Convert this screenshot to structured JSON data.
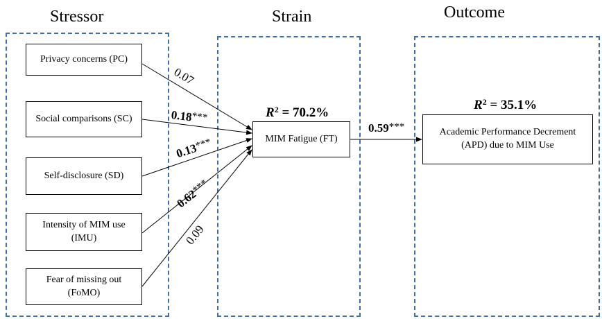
{
  "sections": {
    "stressor": "Stressor",
    "strain": "Strain",
    "outcome": "Outcome"
  },
  "stressors": [
    {
      "id": "pc",
      "label": "Privacy concerns (PC)"
    },
    {
      "id": "sc",
      "label": "Social comparisons (SC)"
    },
    {
      "id": "sd",
      "label": "Self-disclosure (SD)"
    },
    {
      "id": "imu",
      "label": "Intensity of MIM use (IMU)"
    },
    {
      "id": "fomo",
      "label": "Fear of missing out (FoMO)"
    }
  ],
  "strain": {
    "label": "MIM Fatigue (FT)",
    "r2_symbol": "R",
    "r2_exp": "2",
    "r2_value": " = 70.2%"
  },
  "outcome": {
    "label": "Academic Performance Decrement (APD) due to MIM Use",
    "r2_symbol": "R",
    "r2_exp": "2",
    "r2_value": " = 35.1%"
  },
  "paths": [
    {
      "from": "pc",
      "coef": "0.07",
      "stars": ""
    },
    {
      "from": "sc",
      "coef": "0.18",
      "stars": "***"
    },
    {
      "from": "sd",
      "coef": "0.13",
      "stars": "***"
    },
    {
      "from": "imu",
      "coef": "0.62",
      "stars": "***"
    },
    {
      "from": "fomo",
      "coef": "0.09",
      "stars": ""
    },
    {
      "from": "ft",
      "coef": "0.59",
      "stars": "***"
    }
  ],
  "colors": {
    "dashed_border": "#3f6ea3",
    "line": "#000000"
  }
}
